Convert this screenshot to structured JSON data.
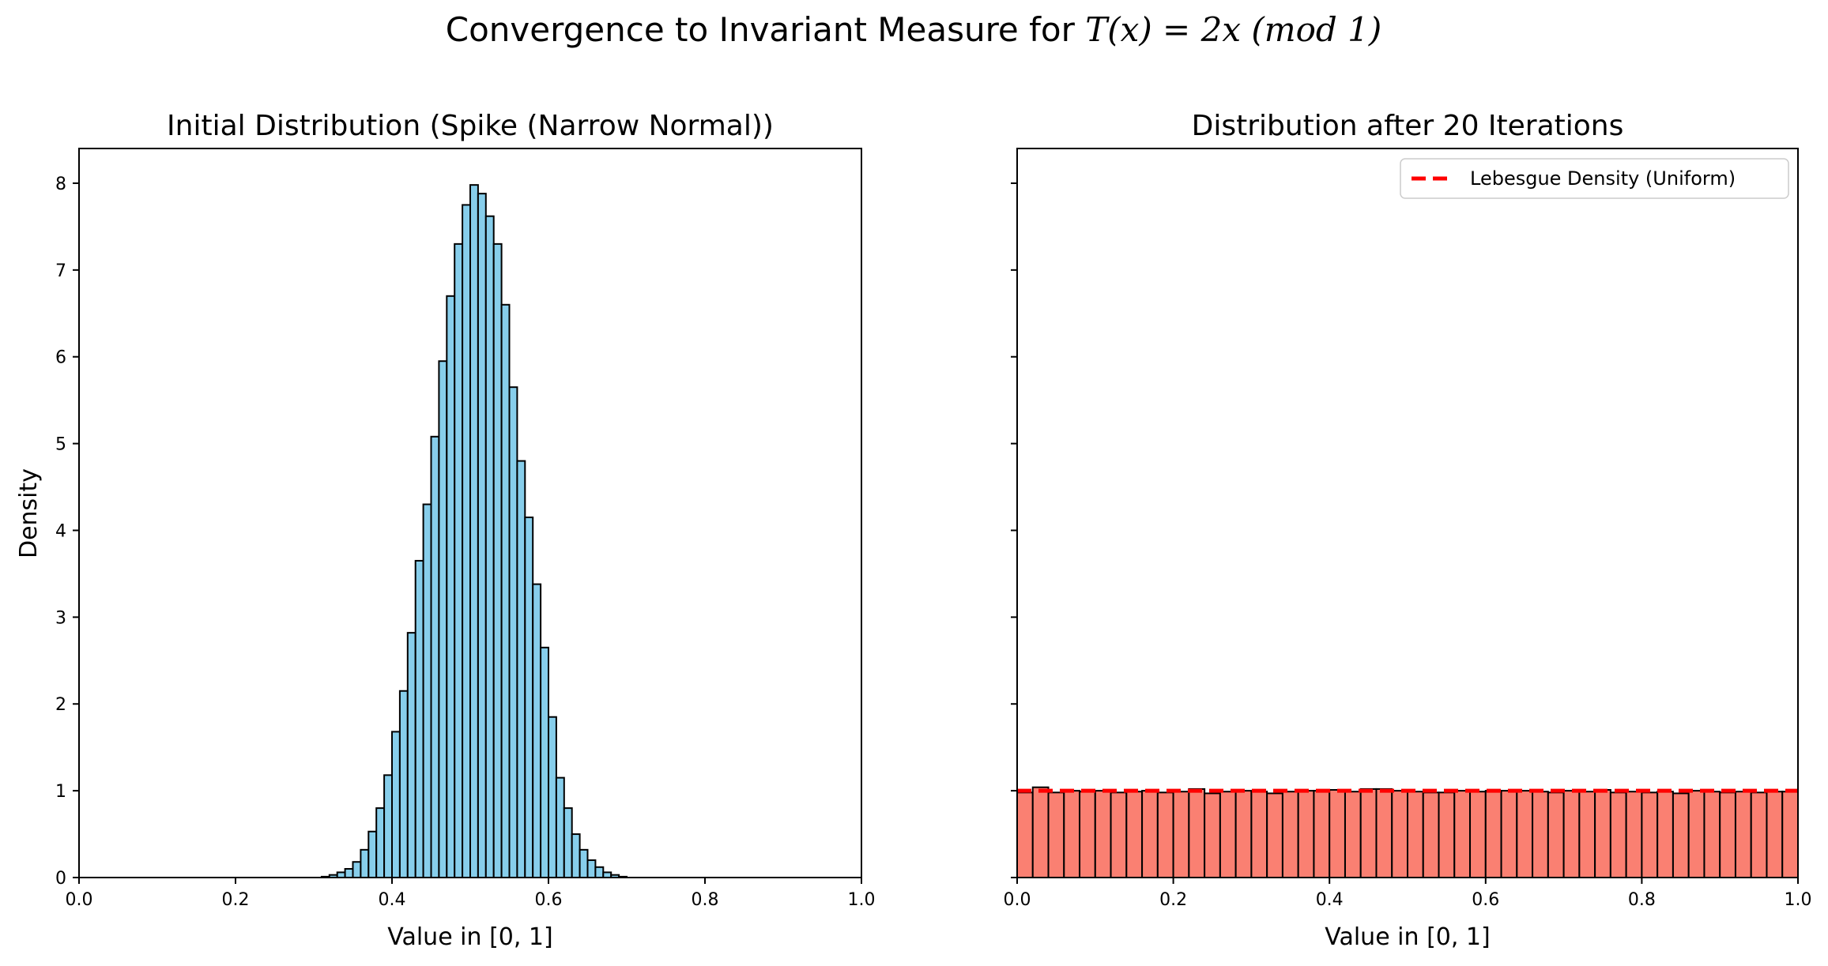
{
  "figure": {
    "title_prefix": "Convergence to Invariant Measure for ",
    "title_math": "T(x) = 2x (mod 1)"
  },
  "chart_data": [
    {
      "type": "bar",
      "title": "Initial Distribution (Spike (Narrow Normal))",
      "xlabel": "Value in [0, 1]",
      "ylabel": "Density",
      "xlim": [
        0.0,
        1.0
      ],
      "ylim": [
        0,
        8.4
      ],
      "x_ticks": [
        "0.0",
        "0.2",
        "0.4",
        "0.6",
        "0.8",
        "1.0"
      ],
      "y_ticks": [
        "0",
        "1",
        "2",
        "3",
        "4",
        "5",
        "6",
        "7",
        "8"
      ],
      "bar_color": "#87CEEB",
      "edge_color": "#000000",
      "bin_start": 0.31,
      "bin_width": 0.01,
      "values": [
        0.01,
        0.03,
        0.06,
        0.1,
        0.18,
        0.32,
        0.53,
        0.8,
        1.18,
        1.68,
        2.15,
        2.82,
        3.65,
        4.3,
        5.08,
        5.95,
        6.7,
        7.3,
        7.75,
        7.98,
        7.88,
        7.62,
        7.3,
        6.6,
        5.65,
        4.8,
        4.15,
        3.38,
        2.65,
        1.85,
        1.15,
        0.8,
        0.5,
        0.32,
        0.2,
        0.12,
        0.06,
        0.03,
        0.01
      ]
    },
    {
      "type": "bar",
      "title": "Distribution after 20 Iterations",
      "xlabel": "Value in [0, 1]",
      "ylabel": "",
      "xlim": [
        0.0,
        1.0
      ],
      "ylim": [
        0,
        8.4
      ],
      "x_ticks": [
        "0.0",
        "0.2",
        "0.4",
        "0.6",
        "0.8",
        "1.0"
      ],
      "bar_color": "#FA8072",
      "edge_color": "#000000",
      "bin_start": 0.0,
      "bin_width": 0.02,
      "values": [
        0.98,
        1.04,
        0.98,
        1.0,
        0.99,
        1.0,
        0.98,
        0.99,
        1.0,
        0.98,
        0.99,
        1.02,
        0.97,
        0.99,
        1.0,
        0.99,
        0.97,
        0.99,
        1.0,
        1.0,
        1.01,
        0.99,
        1.02,
        1.02,
        1.0,
        0.99,
        0.98,
        0.98,
        1.0,
        0.99,
        1.0,
        1.0,
        1.0,
        0.99,
        0.98,
        1.0,
        0.99,
        1.01,
        0.98,
        0.99,
        0.98,
        0.99,
        0.97,
        1.0,
        0.99,
        0.98,
        0.99,
        0.98,
        0.99,
        0.99
      ],
      "reference_line": {
        "label": "Lebesgue Density (Uniform)",
        "y": 1.0,
        "color": "#FF0000",
        "style": "dashed"
      },
      "legend": {
        "entries": [
          "Lebesgue Density (Uniform)"
        ],
        "position": "top-right"
      }
    }
  ]
}
